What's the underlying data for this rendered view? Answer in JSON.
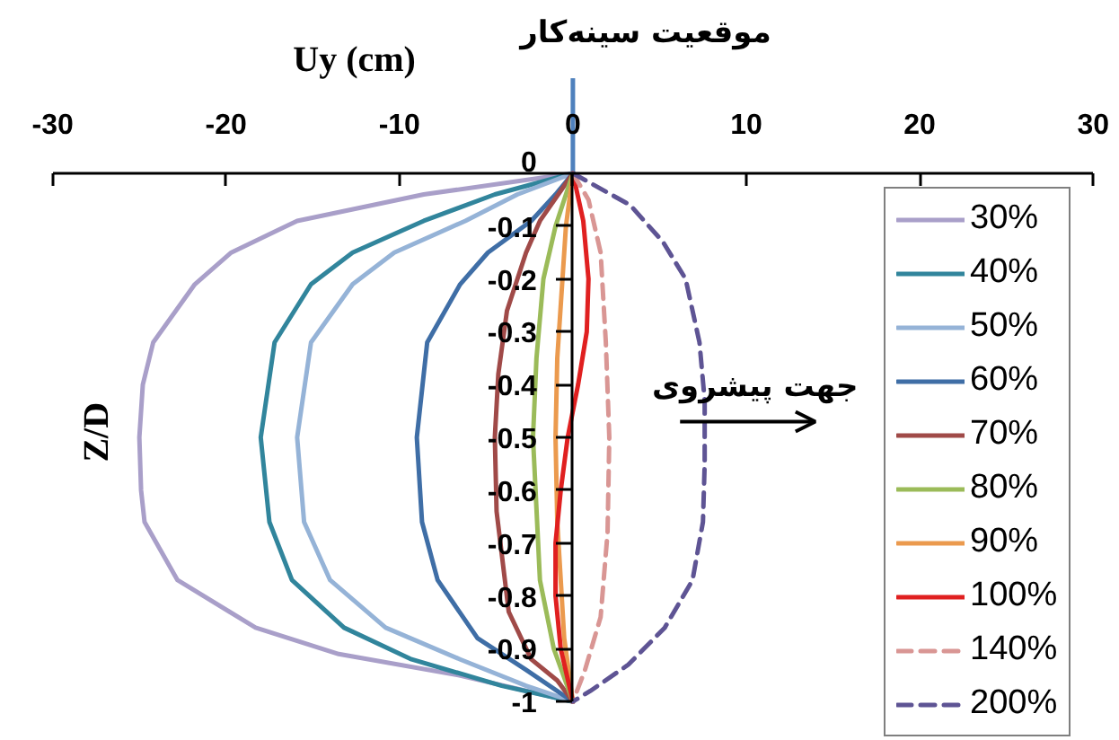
{
  "chart_data": {
    "type": "line",
    "xlabel": "Uy (cm)",
    "ylabel": "Z/D",
    "xlim": [
      -30,
      30
    ],
    "xticks": [
      -30,
      -20,
      -10,
      0,
      10,
      20,
      30
    ],
    "ylim": [
      -1,
      0
    ],
    "yticks": [
      0,
      -0.1,
      -0.2,
      -0.3,
      -0.4,
      -0.5,
      -0.6,
      -0.7,
      -0.8,
      -0.9,
      -1
    ],
    "grid": false,
    "legend": "right",
    "ref_lines": [
      {
        "axis": "x",
        "value": 0,
        "label": "موقعیت سینه‌کار",
        "color": "#4f81bd"
      }
    ],
    "annotations": [
      "جهت پیشروی"
    ],
    "series": [
      {
        "name": "30%",
        "color": "#a99fc9",
        "x": [
          0,
          -8.6,
          -15.9,
          -19.7,
          -21.8,
          -24.2,
          -24.8,
          -25.0,
          -24.9,
          -24.7,
          -22.8,
          -18.3,
          -13.5,
          -6.6,
          0
        ],
        "values": [
          0,
          -0.04,
          -0.09,
          -0.15,
          -0.21,
          -0.32,
          -0.4,
          -0.5,
          -0.6,
          -0.66,
          -0.77,
          -0.86,
          -0.91,
          -0.95,
          -1
        ]
      },
      {
        "name": "40%",
        "color": "#31859c",
        "x": [
          0,
          -4.5,
          -8.6,
          -12.7,
          -15.1,
          -17.2,
          -18.0,
          -17.5,
          -16.2,
          -13.2,
          -9.3,
          -4.1,
          0
        ],
        "values": [
          0,
          -0.04,
          -0.09,
          -0.15,
          -0.21,
          -0.32,
          -0.5,
          -0.66,
          -0.77,
          -0.86,
          -0.92,
          -0.97,
          -1
        ]
      },
      {
        "name": "50%",
        "color": "#95b3d7",
        "x": [
          0,
          -3.2,
          -6.2,
          -10.3,
          -12.7,
          -15.1,
          -15.9,
          -15.5,
          -14.0,
          -10.8,
          -6.5,
          -2.7,
          0
        ],
        "values": [
          0,
          -0.04,
          -0.09,
          -0.15,
          -0.21,
          -0.32,
          -0.5,
          -0.66,
          -0.77,
          -0.86,
          -0.92,
          -0.97,
          -1
        ]
      },
      {
        "name": "60%",
        "color": "#3f6ea6",
        "x": [
          0,
          -1.0,
          -2.4,
          -4.9,
          -6.5,
          -8.4,
          -9.0,
          -8.7,
          -7.8,
          -5.5,
          -2.7,
          0
        ],
        "values": [
          0,
          -0.04,
          -0.09,
          -0.15,
          -0.21,
          -0.32,
          -0.5,
          -0.66,
          -0.77,
          -0.88,
          -0.94,
          -1
        ]
      },
      {
        "name": "70%",
        "color": "#a04a48",
        "x": [
          0,
          -1.9,
          -2.7,
          -3.8,
          -4.3,
          -4.5,
          -4.4,
          -3.7,
          -2.4,
          -0.9,
          0
        ],
        "values": [
          0,
          -0.09,
          -0.15,
          -0.26,
          -0.38,
          -0.5,
          -0.64,
          -0.83,
          -0.92,
          -0.96,
          -1
        ]
      },
      {
        "name": "80%",
        "color": "#9bbb59",
        "x": [
          0,
          -1.0,
          -1.7,
          -2.1,
          -2.3,
          -1.9,
          -1.1,
          0
        ],
        "values": [
          0,
          -0.1,
          -0.2,
          -0.35,
          -0.5,
          -0.77,
          -0.9,
          -1
        ]
      },
      {
        "name": "90%",
        "color": "#eb9a4e",
        "x": [
          0,
          -0.4,
          -0.9,
          -1.0,
          -0.9,
          -0.5,
          0
        ],
        "values": [
          0,
          -0.1,
          -0.35,
          -0.5,
          -0.66,
          -0.88,
          -1
        ]
      },
      {
        "name": "100%",
        "color": "#e02020",
        "x": [
          0,
          0.6,
          0.9,
          0.8,
          0.3,
          -0.3,
          -0.7,
          -1.0,
          -1.0,
          -0.7,
          0
        ],
        "values": [
          0,
          -0.09,
          -0.2,
          -0.3,
          -0.4,
          -0.5,
          -0.6,
          -0.7,
          -0.8,
          -0.9,
          -1
        ]
      },
      {
        "name": "140%",
        "color": "#d99694",
        "line_style": "dashed",
        "x": [
          0,
          0.9,
          1.6,
          1.9,
          2.1,
          2.0,
          1.6,
          0.7,
          0
        ],
        "values": [
          0,
          -0.05,
          -0.15,
          -0.32,
          -0.5,
          -0.68,
          -0.84,
          -0.94,
          -1
        ]
      },
      {
        "name": "200%",
        "color": "#5e5494",
        "line_style": "dashed",
        "x": [
          0,
          3.3,
          5.2,
          6.5,
          7.3,
          7.6,
          7.6,
          7.5,
          6.9,
          5.3,
          3.2,
          1.0,
          0
        ],
        "values": [
          0,
          -0.06,
          -0.13,
          -0.2,
          -0.32,
          -0.43,
          -0.55,
          -0.66,
          -0.77,
          -0.86,
          -0.93,
          -0.98,
          -1
        ]
      }
    ]
  }
}
